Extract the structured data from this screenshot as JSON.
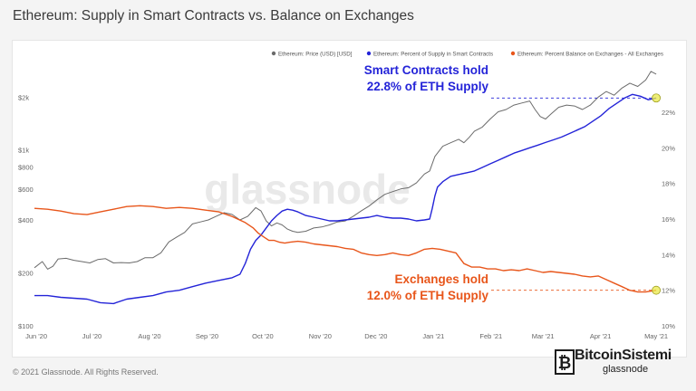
{
  "title": "Ethereum: Supply in Smart Contracts vs. Balance on Exchanges",
  "footer": "© 2021 Glassnode. All Rights Reserved.",
  "watermark": "glassnode",
  "brand": {
    "name": "BitcoinSistemi",
    "sub": "glassnode"
  },
  "colors": {
    "price": "#6b6b6b",
    "smart_contracts": "#2424d8",
    "exchanges": "#e8561b",
    "marker": "#e9e94a"
  },
  "chart_data": {
    "type": "line",
    "x_ticks": [
      "Jun '20",
      "Jul '20",
      "Aug '20",
      "Sep '20",
      "Oct '20",
      "Nov '20",
      "Dec '20",
      "Jan '21",
      "Feb '21",
      "Mar '21",
      "Apr '21",
      "May '21"
    ],
    "y_left": {
      "scale": "log",
      "range": [
        100,
        3300
      ],
      "ticks": [
        "$100",
        "$200",
        "$400",
        "$600",
        "$800",
        "$1k",
        "$2k"
      ]
    },
    "y_right": {
      "range": [
        10,
        25
      ],
      "ticks": [
        "10%",
        "12%",
        "14%",
        "16%",
        "18%",
        "20%",
        "22%"
      ]
    },
    "legend_position": "top-right",
    "series": [
      {
        "name": "Ethereum: Price (USD) [USD]",
        "axis": "left",
        "points": [
          [
            0,
            214
          ],
          [
            3,
            232
          ],
          [
            5,
            210
          ],
          [
            7,
            218
          ],
          [
            9,
            240
          ],
          [
            12,
            242
          ],
          [
            15,
            236
          ],
          [
            18,
            232
          ],
          [
            21,
            228
          ],
          [
            24,
            238
          ],
          [
            27,
            241
          ],
          [
            30,
            228
          ],
          [
            33,
            229
          ],
          [
            36,
            228
          ],
          [
            39,
            232
          ],
          [
            42,
            244
          ],
          [
            45,
            244
          ],
          [
            48,
            260
          ],
          [
            51,
            300
          ],
          [
            54,
            320
          ],
          [
            57,
            340
          ],
          [
            60,
            380
          ],
          [
            63,
            390
          ],
          [
            66,
            400
          ],
          [
            69,
            420
          ],
          [
            72,
            440
          ],
          [
            75,
            430
          ],
          [
            78,
            400
          ],
          [
            81,
            420
          ],
          [
            84,
            470
          ],
          [
            86,
            450
          ],
          [
            88,
            395
          ],
          [
            90,
            370
          ],
          [
            92,
            385
          ],
          [
            94,
            375
          ],
          [
            96,
            355
          ],
          [
            98,
            345
          ],
          [
            100,
            340
          ],
          [
            103,
            345
          ],
          [
            106,
            360
          ],
          [
            109,
            365
          ],
          [
            112,
            375
          ],
          [
            115,
            390
          ],
          [
            118,
            395
          ],
          [
            121,
            420
          ],
          [
            124,
            450
          ],
          [
            127,
            480
          ],
          [
            130,
            520
          ],
          [
            133,
            560
          ],
          [
            136,
            580
          ],
          [
            139,
            600
          ],
          [
            142,
            610
          ],
          [
            145,
            650
          ],
          [
            148,
            730
          ],
          [
            150,
            760
          ],
          [
            152,
            920
          ],
          [
            155,
            1050
          ],
          [
            158,
            1100
          ],
          [
            161,
            1150
          ],
          [
            163,
            1100
          ],
          [
            165,
            1180
          ],
          [
            167,
            1280
          ],
          [
            170,
            1350
          ],
          [
            173,
            1500
          ],
          [
            176,
            1650
          ],
          [
            179,
            1700
          ],
          [
            182,
            1800
          ],
          [
            185,
            1850
          ],
          [
            188,
            1900
          ],
          [
            190,
            1700
          ],
          [
            192,
            1550
          ],
          [
            194,
            1500
          ],
          [
            196,
            1600
          ],
          [
            199,
            1750
          ],
          [
            202,
            1800
          ],
          [
            205,
            1780
          ],
          [
            208,
            1700
          ],
          [
            211,
            1800
          ],
          [
            214,
            2000
          ],
          [
            217,
            2150
          ],
          [
            220,
            2050
          ],
          [
            223,
            2250
          ],
          [
            226,
            2400
          ],
          [
            229,
            2300
          ],
          [
            232,
            2500
          ],
          [
            234,
            2800
          ],
          [
            236,
            2700
          ]
        ]
      },
      {
        "name": "Ethereum: Percent of Supply in Smart Contracts",
        "axis": "right",
        "points": [
          [
            0,
            11.7
          ],
          [
            5,
            11.7
          ],
          [
            10,
            11.6
          ],
          [
            15,
            11.55
          ],
          [
            20,
            11.5
          ],
          [
            25,
            11.3
          ],
          [
            30,
            11.25
          ],
          [
            35,
            11.5
          ],
          [
            40,
            11.6
          ],
          [
            45,
            11.7
          ],
          [
            50,
            11.9
          ],
          [
            55,
            12.0
          ],
          [
            60,
            12.2
          ],
          [
            65,
            12.4
          ],
          [
            70,
            12.55
          ],
          [
            75,
            12.7
          ],
          [
            78,
            12.9
          ],
          [
            80,
            13.5
          ],
          [
            82,
            14.3
          ],
          [
            84,
            14.8
          ],
          [
            86,
            15.1
          ],
          [
            88,
            15.5
          ],
          [
            90,
            15.9
          ],
          [
            92,
            16.2
          ],
          [
            94,
            16.45
          ],
          [
            96,
            16.55
          ],
          [
            98,
            16.5
          ],
          [
            100,
            16.4
          ],
          [
            103,
            16.2
          ],
          [
            106,
            16.1
          ],
          [
            109,
            16.0
          ],
          [
            112,
            15.9
          ],
          [
            115,
            15.9
          ],
          [
            118,
            15.95
          ],
          [
            121,
            16.0
          ],
          [
            124,
            16.05
          ],
          [
            127,
            16.1
          ],
          [
            130,
            16.2
          ],
          [
            133,
            16.1
          ],
          [
            136,
            16.05
          ],
          [
            139,
            16.05
          ],
          [
            142,
            16.0
          ],
          [
            145,
            15.9
          ],
          [
            148,
            15.95
          ],
          [
            150,
            16.0
          ],
          [
            151,
            16.6
          ],
          [
            152,
            17.3
          ],
          [
            153,
            17.8
          ],
          [
            155,
            18.1
          ],
          [
            158,
            18.4
          ],
          [
            161,
            18.5
          ],
          [
            164,
            18.6
          ],
          [
            167,
            18.7
          ],
          [
            170,
            18.9
          ],
          [
            173,
            19.1
          ],
          [
            176,
            19.3
          ],
          [
            179,
            19.5
          ],
          [
            182,
            19.7
          ],
          [
            185,
            19.85
          ],
          [
            188,
            20.0
          ],
          [
            191,
            20.15
          ],
          [
            194,
            20.3
          ],
          [
            197,
            20.45
          ],
          [
            200,
            20.6
          ],
          [
            203,
            20.8
          ],
          [
            206,
            21.0
          ],
          [
            209,
            21.2
          ],
          [
            212,
            21.5
          ],
          [
            215,
            21.8
          ],
          [
            218,
            22.2
          ],
          [
            221,
            22.5
          ],
          [
            224,
            22.8
          ],
          [
            227,
            23.0
          ],
          [
            230,
            22.9
          ],
          [
            233,
            22.7
          ],
          [
            236,
            22.8
          ]
        ]
      },
      {
        "name": "Ethereum: Percent Balance on Exchanges - All Exchanges",
        "axis": "right",
        "points": [
          [
            0,
            16.6
          ],
          [
            5,
            16.55
          ],
          [
            10,
            16.45
          ],
          [
            15,
            16.3
          ],
          [
            20,
            16.25
          ],
          [
            25,
            16.4
          ],
          [
            30,
            16.55
          ],
          [
            35,
            16.7
          ],
          [
            40,
            16.75
          ],
          [
            45,
            16.7
          ],
          [
            50,
            16.6
          ],
          [
            55,
            16.65
          ],
          [
            60,
            16.6
          ],
          [
            65,
            16.5
          ],
          [
            70,
            16.4
          ],
          [
            75,
            16.15
          ],
          [
            80,
            15.8
          ],
          [
            83,
            15.5
          ],
          [
            85,
            15.2
          ],
          [
            87,
            15.0
          ],
          [
            89,
            14.8
          ],
          [
            91,
            14.8
          ],
          [
            93,
            14.7
          ],
          [
            95,
            14.65
          ],
          [
            97,
            14.7
          ],
          [
            100,
            14.75
          ],
          [
            103,
            14.7
          ],
          [
            106,
            14.6
          ],
          [
            109,
            14.55
          ],
          [
            112,
            14.5
          ],
          [
            115,
            14.45
          ],
          [
            118,
            14.35
          ],
          [
            121,
            14.3
          ],
          [
            124,
            14.1
          ],
          [
            127,
            14.0
          ],
          [
            130,
            13.95
          ],
          [
            133,
            14.0
          ],
          [
            136,
            14.1
          ],
          [
            139,
            14.0
          ],
          [
            142,
            13.95
          ],
          [
            145,
            14.1
          ],
          [
            148,
            14.3
          ],
          [
            151,
            14.35
          ],
          [
            154,
            14.3
          ],
          [
            157,
            14.2
          ],
          [
            160,
            14.1
          ],
          [
            163,
            13.5
          ],
          [
            166,
            13.3
          ],
          [
            169,
            13.3
          ],
          [
            172,
            13.2
          ],
          [
            175,
            13.2
          ],
          [
            178,
            13.1
          ],
          [
            181,
            13.15
          ],
          [
            184,
            13.1
          ],
          [
            187,
            13.2
          ],
          [
            190,
            13.1
          ],
          [
            193,
            13.0
          ],
          [
            196,
            13.05
          ],
          [
            199,
            13.0
          ],
          [
            202,
            12.95
          ],
          [
            205,
            12.9
          ],
          [
            208,
            12.8
          ],
          [
            211,
            12.75
          ],
          [
            214,
            12.8
          ],
          [
            217,
            12.6
          ],
          [
            220,
            12.4
          ],
          [
            223,
            12.2
          ],
          [
            226,
            12.0
          ],
          [
            229,
            11.9
          ],
          [
            232,
            11.9
          ],
          [
            236,
            12.0
          ]
        ]
      }
    ],
    "annotations": [
      {
        "lines": [
          "Smart Contracts hold",
          "22.8% of ETH Supply"
        ],
        "series": "smart_contracts"
      },
      {
        "lines": [
          "Exchanges hold",
          "12.0% of ETH Supply"
        ],
        "series": "exchanges"
      }
    ]
  }
}
